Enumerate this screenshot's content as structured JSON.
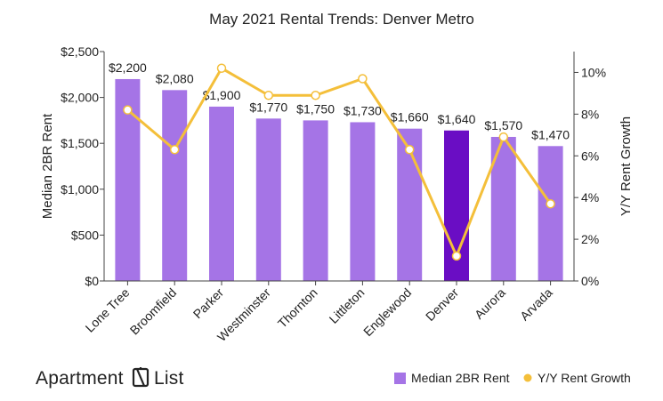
{
  "chart_data": {
    "type": "bar",
    "title": "May 2021 Rental Trends: Denver Metro",
    "xlabel": "",
    "ylabel": "Median 2BR Rent",
    "y2label": "Y/Y Rent Growth",
    "categories": [
      "Lone Tree",
      "Broomfield",
      "Parker",
      "Westminster",
      "Thornton",
      "Littleton",
      "Englewood",
      "Denver",
      "Aurora",
      "Arvada"
    ],
    "series": [
      {
        "name": "Median 2BR Rent",
        "type": "bar",
        "axis": "left",
        "values": [
          2200,
          2080,
          1900,
          1770,
          1750,
          1730,
          1660,
          1640,
          1570,
          1470
        ],
        "labels": [
          "$2,200",
          "$2,080",
          "$1,900",
          "$1,770",
          "$1,750",
          "$1,730",
          "$1,660",
          "$1,640",
          "$1,570",
          "$1,470"
        ],
        "color": "#a574e6",
        "highlight": {
          "category": "Denver",
          "color": "#6a0dc4"
        }
      },
      {
        "name": "Y/Y Rent Growth",
        "type": "line",
        "axis": "right",
        "values": [
          8.2,
          6.3,
          10.2,
          8.9,
          8.9,
          9.7,
          6.3,
          1.2,
          6.9,
          3.7
        ],
        "color": "#f4bf3a"
      }
    ],
    "ylim": [
      0,
      2500
    ],
    "y2lim": [
      0,
      11
    ],
    "yticks": [
      "$0",
      "$500",
      "$1,000",
      "$1,500",
      "$2,000",
      "$2,500"
    ],
    "y2ticks": [
      "0%",
      "2%",
      "4%",
      "6%",
      "8%",
      "10%"
    ],
    "grid": false,
    "legend_position": "bottom-right"
  },
  "brand": {
    "name_part1": "Apartment",
    "name_part2": "List"
  }
}
